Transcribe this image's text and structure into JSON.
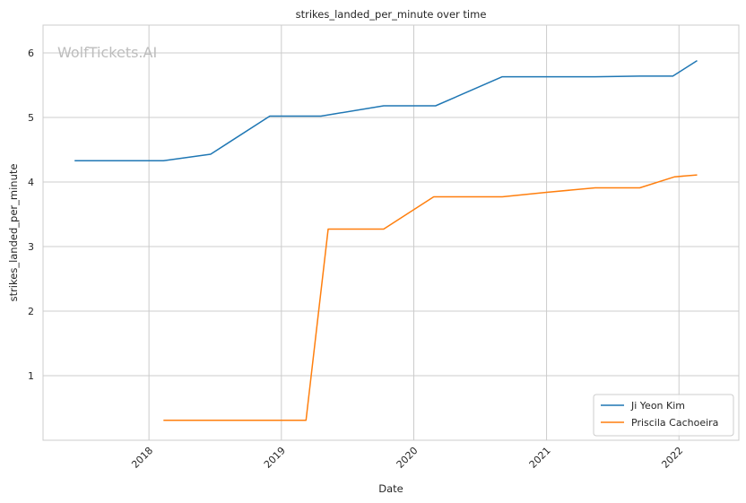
{
  "chart_data": {
    "type": "line",
    "title": "strikes_landed_per_minute over time",
    "xlabel": "Date",
    "ylabel": "strikes_landed_per_minute",
    "watermark": "WolfTickets.AI",
    "x_axis": {
      "type": "date",
      "range": [
        "2017-03-15",
        "2022-06-15"
      ],
      "ticks": [
        {
          "date": "2018-01-01",
          "label": "2018"
        },
        {
          "date": "2019-01-01",
          "label": "2019"
        },
        {
          "date": "2020-01-01",
          "label": "2020"
        },
        {
          "date": "2021-01-01",
          "label": "2021"
        },
        {
          "date": "2022-01-01",
          "label": "2022"
        }
      ],
      "tick_rotation": -45
    },
    "y_axis": {
      "range": [
        0.0,
        6.43
      ],
      "ticks": [
        1,
        2,
        3,
        4,
        5,
        6
      ]
    },
    "grid": true,
    "legend_position": "lower-right",
    "series": [
      {
        "name": "Ji Yeon Kim",
        "color": "#1f77b4",
        "points": [
          {
            "x": "2017-06-10",
            "y": 4.33
          },
          {
            "x": "2018-02-10",
            "y": 4.33
          },
          {
            "x": "2018-06-20",
            "y": 4.43
          },
          {
            "x": "2018-11-30",
            "y": 5.02
          },
          {
            "x": "2019-04-20",
            "y": 5.02
          },
          {
            "x": "2019-10-10",
            "y": 5.18
          },
          {
            "x": "2020-03-01",
            "y": 5.18
          },
          {
            "x": "2020-09-01",
            "y": 5.63
          },
          {
            "x": "2021-05-15",
            "y": 5.63
          },
          {
            "x": "2021-09-15",
            "y": 5.64
          },
          {
            "x": "2021-12-15",
            "y": 5.64
          },
          {
            "x": "2022-02-20",
            "y": 5.88
          }
        ]
      },
      {
        "name": "Priscila Cachoeira",
        "color": "#ff7f0e",
        "points": [
          {
            "x": "2018-02-10",
            "y": 0.31
          },
          {
            "x": "2019-03-10",
            "y": 0.31
          },
          {
            "x": "2019-05-10",
            "y": 3.27
          },
          {
            "x": "2019-10-10",
            "y": 3.27
          },
          {
            "x": "2020-02-25",
            "y": 3.77
          },
          {
            "x": "2020-09-01",
            "y": 3.77
          },
          {
            "x": "2021-01-01",
            "y": 3.84
          },
          {
            "x": "2021-05-15",
            "y": 3.91
          },
          {
            "x": "2021-09-15",
            "y": 3.91
          },
          {
            "x": "2021-12-20",
            "y": 4.08
          },
          {
            "x": "2022-02-20",
            "y": 4.11
          }
        ]
      }
    ]
  }
}
